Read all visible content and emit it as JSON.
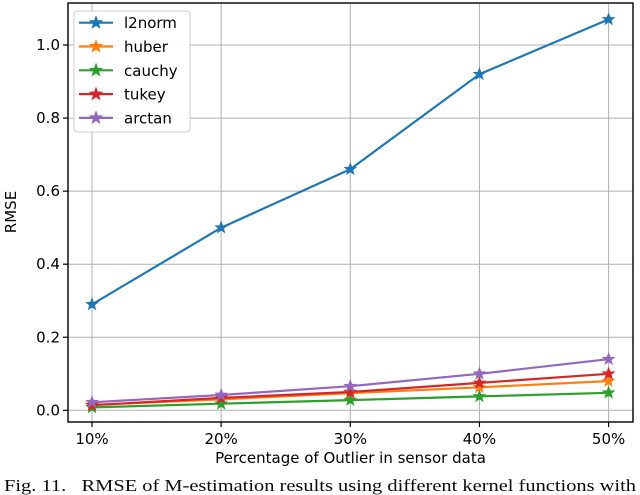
{
  "chart_data": {
    "type": "line",
    "title": "",
    "xlabel": "Percentage of Outlier in sensor data",
    "ylabel": "RMSE",
    "categories": [
      "10%",
      "20%",
      "30%",
      "40%",
      "50%"
    ],
    "y_ticks": [
      "0.0",
      "0.2",
      "0.4",
      "0.6",
      "0.8",
      "1.0"
    ],
    "y_tick_values": [
      0.0,
      0.2,
      0.4,
      0.6,
      0.8,
      1.0
    ],
    "ylim": [
      -0.032,
      1.115
    ],
    "grid": true,
    "legend_position": "upper left",
    "marker": "star",
    "series": [
      {
        "name": "l2norm",
        "color": "#1f77b4",
        "values": [
          0.29,
          0.5,
          0.66,
          0.92,
          1.07
        ]
      },
      {
        "name": "huber",
        "color": "#ff7f0e",
        "values": [
          0.015,
          0.03,
          0.047,
          0.063,
          0.08
        ]
      },
      {
        "name": "cauchy",
        "color": "#2ca02c",
        "values": [
          0.008,
          0.018,
          0.028,
          0.038,
          0.048
        ]
      },
      {
        "name": "tukey",
        "color": "#d62728",
        "values": [
          0.014,
          0.034,
          0.05,
          0.075,
          0.1
        ]
      },
      {
        "name": "arctan",
        "color": "#9467bd",
        "values": [
          0.022,
          0.042,
          0.066,
          0.1,
          0.14
        ]
      }
    ]
  },
  "caption": "Fig. 11.   RMSE of M-estimation results using different kernel functions with",
  "colors": {
    "background": "#ffffff",
    "grid": "#b0b0b0",
    "axis": "#000000",
    "legend_border": "#cccccc",
    "legend_fill": "#ffffff"
  }
}
